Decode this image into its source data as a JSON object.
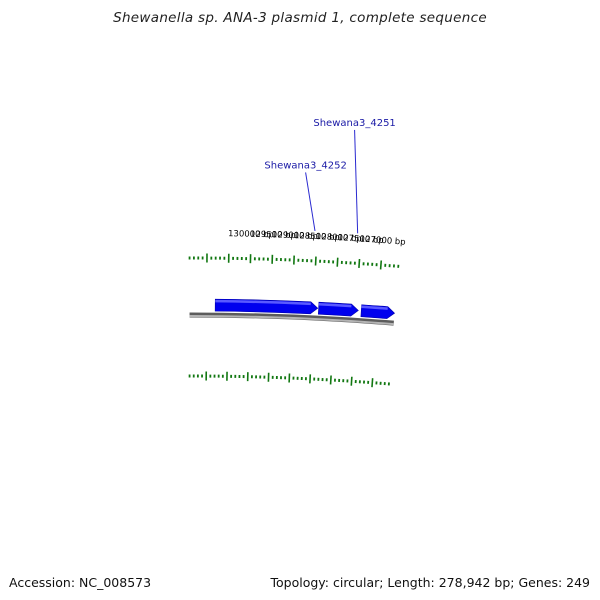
{
  "title": "Shewanella sp. ANA-3 plasmid 1, complete sequence",
  "footer": {
    "accession_label": "Accession: NC_008573",
    "summary": "Topology: circular; Length: 278,942 bp; Genes: 249"
  },
  "colors": {
    "gene_forward": "#0000ee",
    "gene_highlight": "#5a5aff",
    "backbone": "#888888",
    "ticks": "#117711",
    "gene_label": "#1a1aa6"
  },
  "scale_labels": [
    {
      "text": "130000 bp",
      "position_bp": 130000
    },
    {
      "text": "129500 bp",
      "position_bp": 129500
    },
    {
      "text": "129000 bp",
      "position_bp": 129000
    },
    {
      "text": "128500 bp",
      "position_bp": 128500
    },
    {
      "text": "128000 bp",
      "position_bp": 128000
    },
    {
      "text": "127500 bp",
      "position_bp": 127500
    },
    {
      "text": "127000 bp",
      "position_bp": 127000
    }
  ],
  "genes": [
    {
      "name": "Shewana3_4252",
      "start_bp": 128400,
      "end_bp": 130800
    },
    {
      "name": "Shewana3_4251",
      "start_bp": 127450,
      "end_bp": 128380
    }
  ]
}
